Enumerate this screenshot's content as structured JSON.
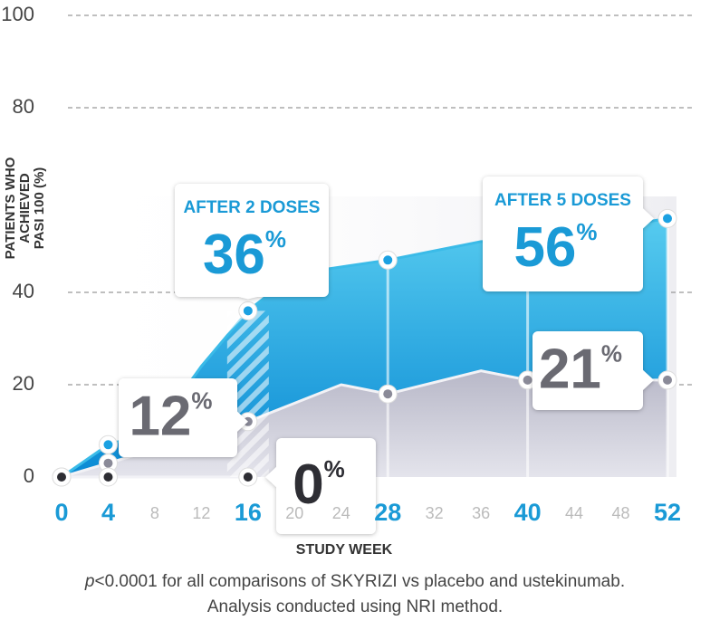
{
  "chart_data": {
    "type": "area",
    "ylabel": [
      "PATIENTS WHO",
      "ACHIEVED",
      "PASI 100 (%)"
    ],
    "xlabel": "STUDY WEEK",
    "xlim": [
      0,
      52
    ],
    "xticks": [
      0,
      4,
      8,
      12,
      16,
      20,
      24,
      28,
      32,
      36,
      40,
      44,
      48,
      52
    ],
    "xtick_highlight": [
      0,
      4,
      16,
      28,
      40,
      52
    ],
    "ylim": [
      0,
      100
    ],
    "yticks": [
      0,
      20,
      40,
      80,
      100
    ],
    "grid": true,
    "series": [
      {
        "color": "#1ba1e2",
        "x": [
          0,
          4,
          8,
          12,
          16,
          20,
          28,
          36,
          40,
          52
        ],
        "values": [
          0,
          7,
          10,
          24,
          36,
          44,
          47,
          51,
          51,
          56
        ],
        "value_labels": [
          null,
          null,
          null,
          null,
          "36%",
          null,
          null,
          null,
          null,
          "56%"
        ],
        "annotations": [
          null,
          null,
          null,
          null,
          "AFTER 2 DOSES",
          null,
          null,
          null,
          null,
          "AFTER 5 DOSES"
        ]
      },
      {
        "color": "#8a8a98",
        "x": [
          0,
          4,
          8,
          12,
          16,
          24,
          28,
          36,
          40,
          52
        ],
        "values": [
          0,
          3,
          6,
          9,
          12,
          20,
          18,
          23,
          21,
          21
        ],
        "value_labels": [
          null,
          null,
          null,
          null,
          "12%",
          null,
          null,
          null,
          null,
          "21%"
        ]
      },
      {
        "color": "#2e2e34",
        "x": [
          0,
          4,
          16
        ],
        "values": [
          0,
          0,
          0
        ],
        "value_labels": [
          null,
          null,
          "0%"
        ]
      }
    ],
    "footnote": [
      "p<0.0001 for all comparisons of SKYRIZI vs placebo and ustekinumab.",
      "Analysis conducted using NRI method."
    ]
  }
}
